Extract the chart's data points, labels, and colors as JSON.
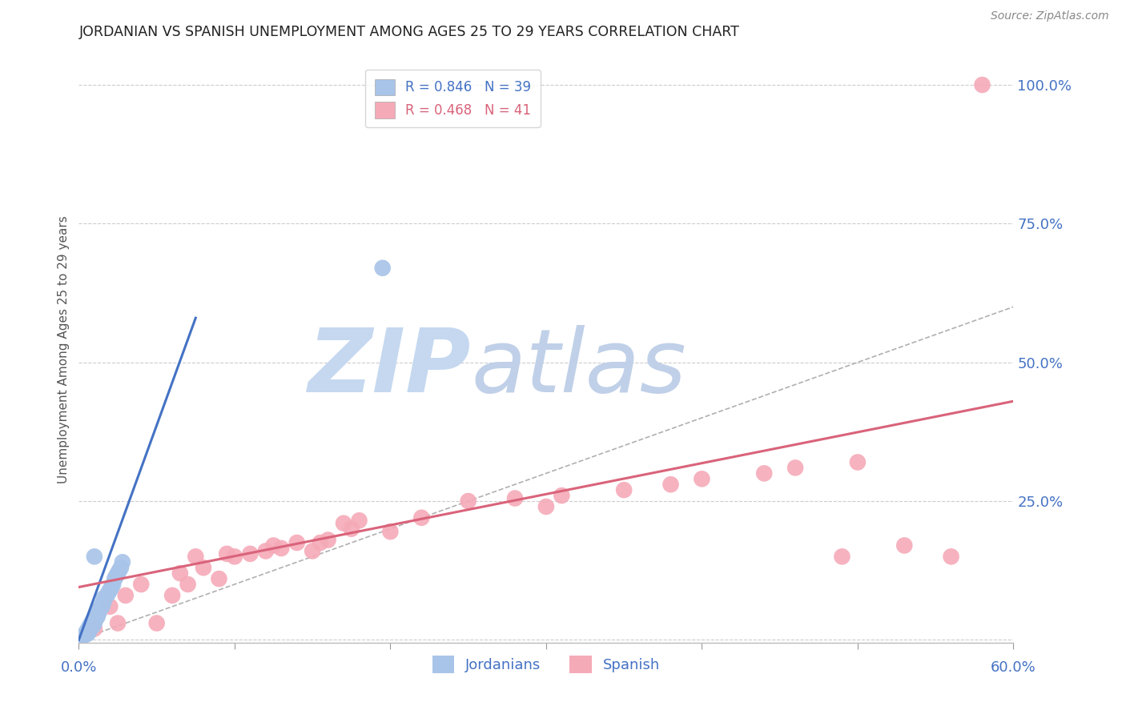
{
  "title": "JORDANIAN VS SPANISH UNEMPLOYMENT AMONG AGES 25 TO 29 YEARS CORRELATION CHART",
  "source": "Source: ZipAtlas.com",
  "ylabel": "Unemployment Among Ages 25 to 29 years",
  "xlim": [
    0.0,
    0.6
  ],
  "ylim": [
    -0.005,
    1.05
  ],
  "xticks": [
    0.0,
    0.1,
    0.2,
    0.3,
    0.4,
    0.5,
    0.6
  ],
  "yticks": [
    0.0,
    0.25,
    0.5,
    0.75,
    1.0
  ],
  "yticklabels": [
    "",
    "25.0%",
    "50.0%",
    "75.0%",
    "100.0%"
  ],
  "jordan_color": "#a8c4e8",
  "spanish_color": "#f5aab8",
  "jordan_line_color": "#4472c4",
  "spanish_line_color": "#d9637a",
  "grid_color": "#cccccc",
  "background_color": "#ffffff",
  "title_color": "#222222",
  "axis_label_color": "#555555",
  "tick_color": "#4472c4",
  "watermark_zip_color": "#c5d8f0",
  "watermark_atlas_color": "#c0d0e8",
  "watermark_text_zip": "ZIP",
  "watermark_text_atlas": "atlas",
  "legend_jordan_label": "R = 0.846   N = 39",
  "legend_spanish_label": "R = 0.468   N = 41",
  "jordan_x": [
    0.002,
    0.003,
    0.004,
    0.005,
    0.005,
    0.006,
    0.006,
    0.007,
    0.007,
    0.008,
    0.008,
    0.009,
    0.009,
    0.01,
    0.01,
    0.011,
    0.011,
    0.012,
    0.012,
    0.013,
    0.013,
    0.014,
    0.015,
    0.015,
    0.016,
    0.016,
    0.018,
    0.019,
    0.02,
    0.021,
    0.022,
    0.023,
    0.024,
    0.025,
    0.026,
    0.027,
    0.028,
    0.01,
    0.195
  ],
  "jordan_y": [
    0.005,
    0.008,
    0.01,
    0.01,
    0.015,
    0.012,
    0.02,
    0.018,
    0.025,
    0.022,
    0.03,
    0.025,
    0.035,
    0.03,
    0.04,
    0.038,
    0.045,
    0.042,
    0.048,
    0.05,
    0.055,
    0.058,
    0.06,
    0.065,
    0.068,
    0.075,
    0.08,
    0.085,
    0.09,
    0.095,
    0.1,
    0.11,
    0.115,
    0.12,
    0.125,
    0.13,
    0.14,
    0.15,
    0.67
  ],
  "spanish_x": [
    0.01,
    0.02,
    0.025,
    0.03,
    0.04,
    0.05,
    0.06,
    0.065,
    0.07,
    0.075,
    0.08,
    0.09,
    0.095,
    0.1,
    0.11,
    0.12,
    0.125,
    0.13,
    0.14,
    0.15,
    0.155,
    0.16,
    0.17,
    0.175,
    0.18,
    0.2,
    0.22,
    0.25,
    0.28,
    0.3,
    0.31,
    0.35,
    0.38,
    0.4,
    0.44,
    0.46,
    0.49,
    0.5,
    0.53,
    0.56,
    0.58
  ],
  "spanish_y": [
    0.02,
    0.06,
    0.03,
    0.08,
    0.1,
    0.03,
    0.08,
    0.12,
    0.1,
    0.15,
    0.13,
    0.11,
    0.155,
    0.15,
    0.155,
    0.16,
    0.17,
    0.165,
    0.175,
    0.16,
    0.175,
    0.18,
    0.21,
    0.2,
    0.215,
    0.195,
    0.22,
    0.25,
    0.255,
    0.24,
    0.26,
    0.27,
    0.28,
    0.29,
    0.3,
    0.31,
    0.15,
    0.32,
    0.17,
    0.15,
    1.0
  ],
  "jordan_line_x": [
    0.0,
    0.075
  ],
  "jordan_line_y": [
    0.0,
    0.58
  ],
  "spanish_line_x": [
    0.0,
    0.6
  ],
  "spanish_line_y": [
    0.095,
    0.43
  ],
  "ref_line_x": [
    0.0,
    1.0
  ],
  "ref_line_y": [
    0.0,
    1.0
  ]
}
